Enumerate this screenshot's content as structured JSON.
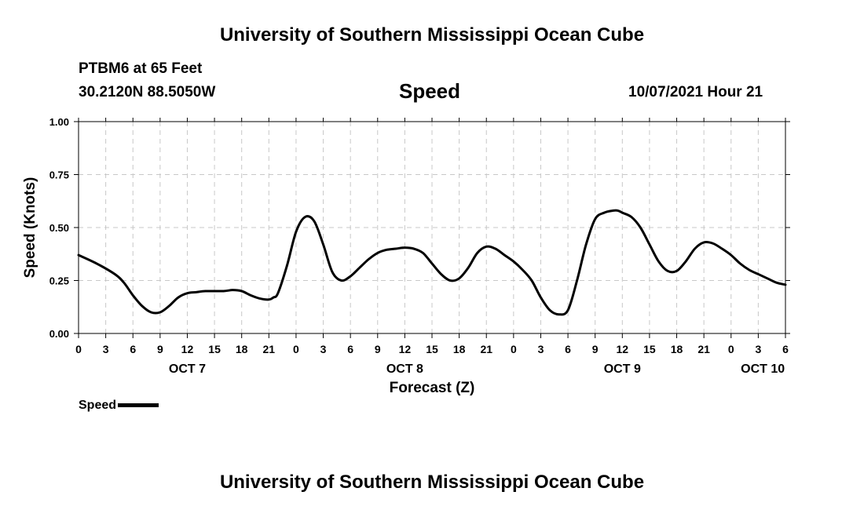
{
  "header": {
    "title": "University of Southern Mississippi Ocean Cube",
    "station": "PTBM6 at 65 Feet",
    "coords": "30.2120N  88.5050W",
    "variable": "Speed",
    "timestamp": "10/07/2021 Hour 21"
  },
  "footer": {
    "title": "University of Southern Mississippi Ocean Cube"
  },
  "legend": {
    "label": "Speed",
    "color": "#000000"
  },
  "chart_data": {
    "type": "line",
    "title": "Speed",
    "xlabel": "Forecast (Z)",
    "ylabel": "Speed (Knots)",
    "xlim": [
      0,
      78
    ],
    "ylim": [
      0,
      1.0
    ],
    "grid": true,
    "yticks": [
      0.0,
      0.25,
      0.5,
      0.75,
      1.0
    ],
    "ytick_labels": [
      "0.00",
      "0.25",
      "0.50",
      "0.75",
      "1.00"
    ],
    "xticks": [
      0,
      3,
      6,
      9,
      12,
      15,
      18,
      21,
      24,
      27,
      30,
      33,
      36,
      39,
      42,
      45,
      48,
      51,
      54,
      57,
      60,
      63,
      66,
      69,
      72,
      75,
      78
    ],
    "xtick_labels": [
      "0",
      "3",
      "6",
      "9",
      "12",
      "15",
      "18",
      "21",
      "0",
      "3",
      "6",
      "9",
      "12",
      "15",
      "18",
      "21",
      "0",
      "3",
      "6",
      "9",
      "12",
      "15",
      "18",
      "21",
      "0",
      "3",
      "6"
    ],
    "date_labels": [
      {
        "label": "OCT 7",
        "x": 12
      },
      {
        "label": "OCT 8",
        "x": 36
      },
      {
        "label": "OCT 9",
        "x": 60
      },
      {
        "label": "OCT 10",
        "x": 75.5
      }
    ],
    "series": [
      {
        "name": "Speed",
        "color": "#000000",
        "x": [
          0,
          2,
          4,
          5,
          6,
          7,
          8,
          9,
          10,
          11,
          12,
          13,
          14,
          16,
          17,
          18,
          19,
          20,
          21,
          21.5,
          22,
          23,
          24,
          25,
          26,
          27,
          28,
          29,
          30,
          31,
          32,
          33,
          34,
          35,
          36,
          37,
          38,
          39,
          40,
          41,
          42,
          43,
          44,
          45,
          46,
          47,
          48,
          49,
          50,
          51,
          52,
          53,
          54,
          55,
          56,
          57,
          58,
          59,
          59.5,
          60,
          61,
          62,
          63,
          64,
          65,
          66,
          67,
          68,
          69,
          70,
          71,
          72,
          73,
          74,
          75,
          76,
          77,
          78
        ],
        "values": [
          0.37,
          0.33,
          0.28,
          0.24,
          0.18,
          0.13,
          0.1,
          0.1,
          0.13,
          0.17,
          0.19,
          0.195,
          0.2,
          0.2,
          0.205,
          0.2,
          0.18,
          0.165,
          0.16,
          0.17,
          0.19,
          0.32,
          0.48,
          0.55,
          0.53,
          0.42,
          0.29,
          0.25,
          0.27,
          0.31,
          0.35,
          0.38,
          0.395,
          0.4,
          0.405,
          0.4,
          0.38,
          0.33,
          0.28,
          0.25,
          0.26,
          0.31,
          0.38,
          0.41,
          0.4,
          0.37,
          0.34,
          0.3,
          0.25,
          0.17,
          0.11,
          0.09,
          0.11,
          0.25,
          0.42,
          0.54,
          0.57,
          0.58,
          0.58,
          0.57,
          0.55,
          0.5,
          0.42,
          0.34,
          0.295,
          0.295,
          0.34,
          0.4,
          0.43,
          0.425,
          0.4,
          0.37,
          0.33,
          0.3,
          0.28,
          0.26,
          0.24,
          0.23
        ]
      }
    ]
  }
}
